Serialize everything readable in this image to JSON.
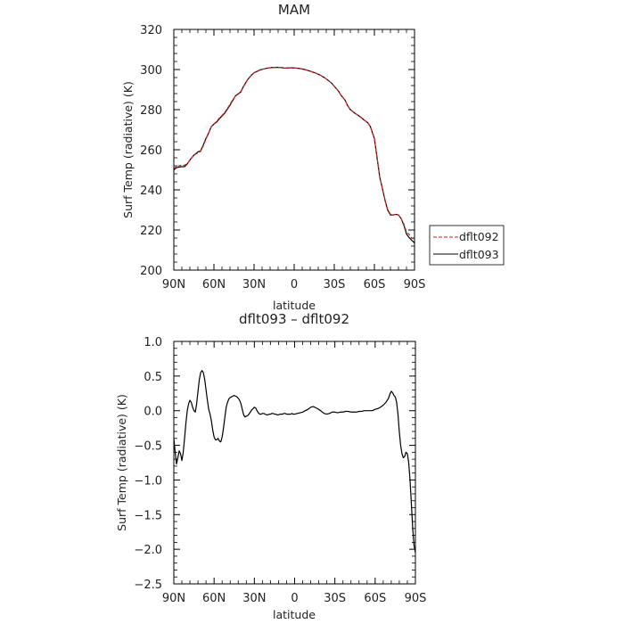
{
  "chart_data": [
    {
      "type": "line",
      "title": "MAM",
      "xlabel": "latitude",
      "ylabel": "Surf Temp (radiative) (K)",
      "xlim": [
        90,
        -90
      ],
      "ylim": [
        200,
        320
      ],
      "xticks": [
        90,
        60,
        30,
        0,
        -30,
        -60,
        -90
      ],
      "xtick_labels": [
        "90N",
        "60N",
        "30N",
        "0",
        "30S",
        "60S",
        "90S"
      ],
      "yticks": [
        200,
        220,
        240,
        260,
        280,
        300,
        320
      ],
      "ytick_labels": [
        "200",
        "220",
        "240",
        "260",
        "280",
        "300",
        "320"
      ],
      "legend_position": "right",
      "series": [
        {
          "name": "dflt092",
          "color": "#cc2222",
          "dash": "dashed",
          "x": [
            90,
            88,
            85,
            82,
            80,
            78,
            75,
            72,
            70,
            68,
            66,
            64,
            62,
            60,
            58,
            56,
            54,
            52,
            50,
            48,
            46,
            44,
            42,
            40,
            38,
            35,
            32,
            30,
            27,
            25,
            22,
            20,
            17,
            15,
            12,
            10,
            7,
            5,
            2,
            0,
            -3,
            -5,
            -8,
            -10,
            -12,
            -15,
            -18,
            -20,
            -23,
            -25,
            -28,
            -30,
            -33,
            -35,
            -38,
            -40,
            -42,
            -45,
            -48,
            -50,
            -52,
            -55,
            -57,
            -60,
            -62,
            -64,
            -66,
            -68,
            -70,
            -72,
            -74,
            -76,
            -78,
            -80,
            -82,
            -84,
            -86,
            -88,
            -90
          ],
          "values": [
            250.3,
            251.8,
            252.2,
            252.3,
            253.0,
            254.8,
            257.3,
            258.4,
            259.2,
            261.8,
            265.2,
            268.3,
            271.6,
            272.9,
            274.2,
            275.8,
            277.1,
            278.6,
            280.6,
            282.6,
            284.9,
            286.7,
            287.7,
            288.6,
            291.3,
            294.7,
            297.1,
            298.4,
            299.4,
            300.0,
            300.4,
            300.7,
            301.0,
            301.1,
            301.1,
            301.0,
            300.7,
            300.8,
            300.9,
            300.8,
            300.6,
            300.4,
            300.0,
            299.6,
            299.2,
            298.5,
            297.7,
            297.0,
            295.8,
            294.8,
            293.2,
            291.6,
            289.4,
            287.2,
            284.8,
            282.0,
            280.0,
            278.4,
            277.1,
            276.1,
            275.0,
            273.5,
            271.5,
            265.6,
            256.0,
            246.4,
            240.6,
            234.7,
            230.1,
            227.9,
            227.5,
            227.8,
            227.5,
            225.7,
            223.0,
            219.0,
            217.8,
            215.9,
            215.6
          ]
        },
        {
          "name": "dflt093",
          "color": "#000000",
          "dash": "solid",
          "x": [
            90,
            88,
            85,
            82,
            80,
            78,
            75,
            72,
            70,
            68,
            66,
            64,
            62,
            60,
            58,
            56,
            54,
            52,
            50,
            48,
            46,
            44,
            42,
            40,
            38,
            35,
            32,
            30,
            27,
            25,
            22,
            20,
            17,
            15,
            12,
            10,
            7,
            5,
            2,
            0,
            -3,
            -5,
            -8,
            -10,
            -12,
            -15,
            -18,
            -20,
            -23,
            -25,
            -28,
            -30,
            -33,
            -35,
            -38,
            -40,
            -42,
            -45,
            -48,
            -50,
            -52,
            -55,
            -57,
            -60,
            -62,
            -64,
            -66,
            -68,
            -70,
            -72,
            -74,
            -76,
            -78,
            -80,
            -82,
            -84,
            -86,
            -88,
            -90
          ],
          "values": [
            249.9,
            251.1,
            251.5,
            251.6,
            252.9,
            254.9,
            257.3,
            258.9,
            259.4,
            262.3,
            265.6,
            268.3,
            271.5,
            272.8,
            273.8,
            275.4,
            276.8,
            278.2,
            280.2,
            282.2,
            284.5,
            286.8,
            287.9,
            288.8,
            291.5,
            294.8,
            297.2,
            298.4,
            299.3,
            299.9,
            300.4,
            300.7,
            301.0,
            301.0,
            301.1,
            301.0,
            300.7,
            300.8,
            300.9,
            300.8,
            300.6,
            300.4,
            300.0,
            299.6,
            299.2,
            298.5,
            297.7,
            297.0,
            295.8,
            294.8,
            293.2,
            291.6,
            289.4,
            287.2,
            284.8,
            282.0,
            280.0,
            278.4,
            277.1,
            276.1,
            275.0,
            273.5,
            271.5,
            265.6,
            256.0,
            246.4,
            240.6,
            234.7,
            229.8,
            227.5,
            227.5,
            227.8,
            227.5,
            225.7,
            222.5,
            218.0,
            216.2,
            214.8,
            213.5
          ]
        }
      ]
    },
    {
      "type": "line",
      "title": "dflt093 – dflt092",
      "xlabel": "latitude",
      "ylabel": "Surf Temp (radiative) (K)",
      "xlim": [
        90,
        -90
      ],
      "ylim": [
        -2.5,
        1.0
      ],
      "xticks": [
        90,
        60,
        30,
        0,
        -30,
        -60,
        -90
      ],
      "xtick_labels": [
        "90N",
        "60N",
        "30N",
        "0",
        "30S",
        "60S",
        "90S"
      ],
      "yticks": [
        -2.5,
        -2.0,
        -1.5,
        -1.0,
        -0.5,
        0.0,
        0.5,
        1.0
      ],
      "ytick_labels": [
        "−2.5",
        "−2.0",
        "−1.5",
        "−1.0",
        "−0.5",
        "0.0",
        "0.5",
        "1.0"
      ],
      "series": [
        {
          "color": "#000000",
          "dash": "solid",
          "x": [
            90,
            89,
            88,
            87,
            86,
            85,
            84,
            83,
            82,
            81,
            80,
            79,
            78,
            77,
            76,
            75,
            74,
            73,
            72,
            71,
            70,
            69,
            68,
            67,
            66,
            65,
            64,
            63,
            62,
            61,
            60,
            59,
            58,
            57,
            56,
            55,
            54,
            53,
            52,
            51,
            50,
            49,
            48,
            47,
            46,
            45,
            44,
            43,
            42,
            41,
            40,
            39,
            38,
            37,
            36,
            35,
            34,
            33,
            32,
            31,
            30,
            29,
            28,
            27,
            26,
            25,
            24,
            23,
            22,
            21,
            20,
            19,
            18,
            17,
            16,
            15,
            14,
            13,
            12,
            11,
            10,
            9,
            8,
            7,
            6,
            5,
            4,
            3,
            2,
            1,
            0,
            -2,
            -4,
            -6,
            -8,
            -10,
            -12,
            -14,
            -16,
            -18,
            -20,
            -22,
            -24,
            -26,
            -28,
            -30,
            -32,
            -34,
            -36,
            -38,
            -40,
            -42,
            -44,
            -46,
            -48,
            -50,
            -52,
            -54,
            -56,
            -58,
            -60,
            -62,
            -64,
            -66,
            -68,
            -70,
            -71,
            -72,
            -73,
            -74,
            -75,
            -76,
            -77,
            -78,
            -79,
            -80,
            -81,
            -82,
            -83,
            -84,
            -85,
            -86,
            -87,
            -88,
            -89,
            -90
          ],
          "values": [
            -0.4,
            -0.6,
            -0.77,
            -0.68,
            -0.58,
            -0.62,
            -0.72,
            -0.6,
            -0.4,
            -0.18,
            0.0,
            0.1,
            0.15,
            0.12,
            0.05,
            0.0,
            -0.02,
            0.1,
            0.28,
            0.45,
            0.55,
            0.58,
            0.55,
            0.45,
            0.3,
            0.15,
            0.02,
            -0.05,
            -0.15,
            -0.28,
            -0.38,
            -0.42,
            -0.42,
            -0.4,
            -0.44,
            -0.45,
            -0.38,
            -0.25,
            -0.1,
            0.05,
            0.12,
            0.17,
            0.19,
            0.2,
            0.21,
            0.22,
            0.21,
            0.2,
            0.18,
            0.15,
            0.1,
            0.02,
            -0.06,
            -0.09,
            -0.08,
            -0.07,
            -0.05,
            -0.02,
            0.01,
            0.03,
            0.05,
            0.04,
            0.0,
            -0.03,
            -0.05,
            -0.05,
            -0.04,
            -0.04,
            -0.05,
            -0.06,
            -0.06,
            -0.05,
            -0.05,
            -0.04,
            -0.04,
            -0.05,
            -0.05,
            -0.06,
            -0.06,
            -0.05,
            -0.05,
            -0.05,
            -0.04,
            -0.04,
            -0.05,
            -0.05,
            -0.05,
            -0.05,
            -0.04,
            -0.05,
            -0.05,
            -0.04,
            -0.03,
            -0.02,
            0.0,
            0.02,
            0.05,
            0.06,
            0.04,
            0.02,
            -0.01,
            -0.04,
            -0.05,
            -0.04,
            -0.02,
            -0.02,
            -0.03,
            -0.02,
            -0.02,
            -0.01,
            -0.01,
            -0.02,
            -0.02,
            -0.02,
            -0.01,
            -0.01,
            0.0,
            0.0,
            0.0,
            0.0,
            0.02,
            0.03,
            0.05,
            0.08,
            0.12,
            0.18,
            0.24,
            0.28,
            0.26,
            0.22,
            0.2,
            0.12,
            -0.05,
            -0.3,
            -0.5,
            -0.62,
            -0.68,
            -0.66,
            -0.6,
            -0.62,
            -0.75,
            -1.0,
            -1.35,
            -1.7,
            -1.95,
            -2.05
          ]
        }
      ]
    }
  ]
}
